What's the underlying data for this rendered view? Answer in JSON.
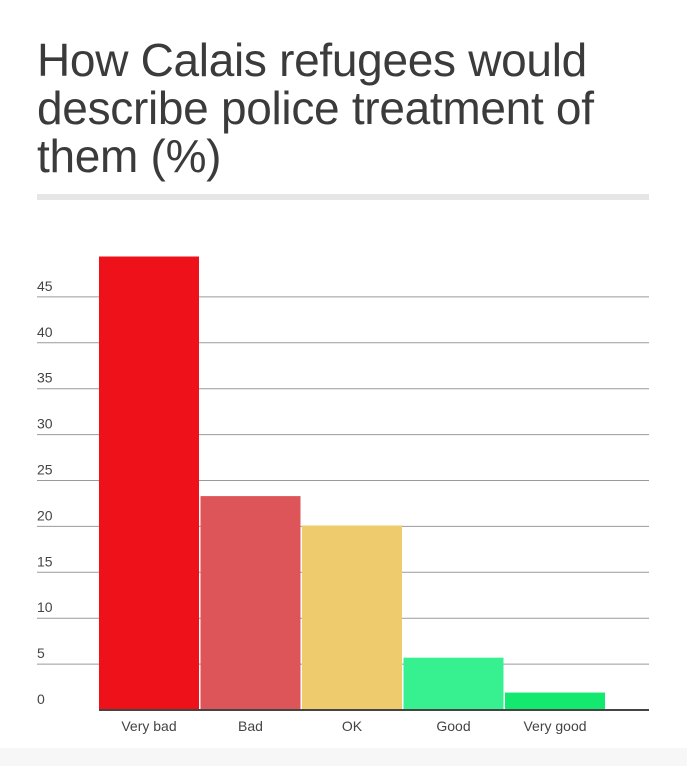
{
  "title": "How Calais refugees would describe police treatment of them (%)",
  "chart_data": {
    "type": "bar",
    "title": "How Calais refugees would describe police treatment of them (%)",
    "categories": [
      "Very bad",
      "Bad",
      "OK",
      "Good",
      "Very good"
    ],
    "values": [
      49.4,
      23.3,
      20.1,
      5.7,
      1.9
    ],
    "colors": [
      "#ee1119",
      "#dd5558",
      "#eecb6d",
      "#37f08f",
      "#13e86f"
    ],
    "yticks": [
      0,
      5,
      10,
      15,
      20,
      25,
      30,
      35,
      40,
      45
    ],
    "ylim": [
      0,
      50
    ],
    "xlabel": "",
    "ylabel": "",
    "grid": true,
    "legend": "none"
  }
}
